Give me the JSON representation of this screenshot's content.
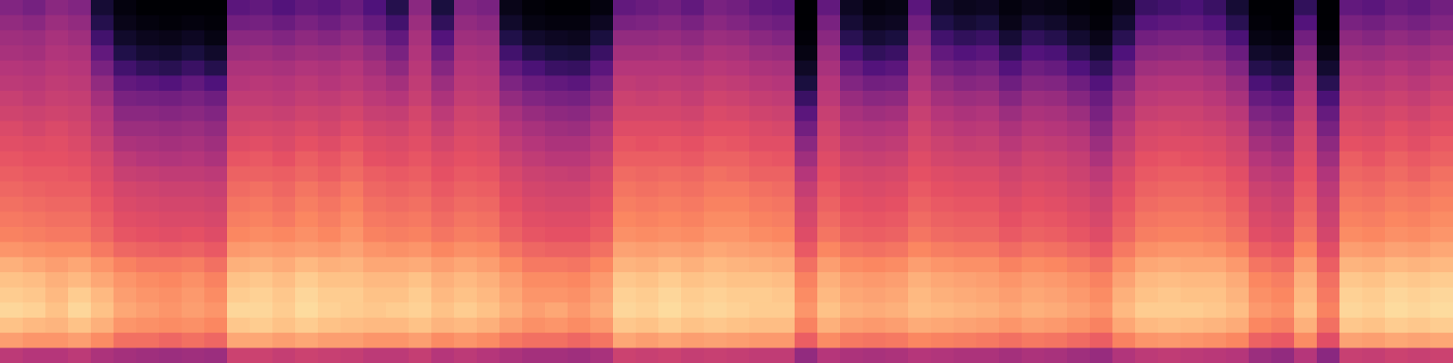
{
  "chart_data": {
    "type": "heatmap",
    "color": "magma",
    "tick_labels": false,
    "zlim": [
      0,
      100
    ],
    "cells": [
      [
        38,
        42,
        45,
        47,
        50,
        52,
        55,
        57,
        60,
        62,
        64,
        66,
        68,
        70,
        72,
        74,
        78,
        84,
        88,
        90,
        92,
        88,
        80,
        52
      ],
      [
        35,
        40,
        44,
        46,
        49,
        51,
        53,
        56,
        58,
        61,
        63,
        65,
        67,
        69,
        71,
        73,
        77,
        82,
        87,
        89,
        91,
        86,
        78,
        50
      ],
      [
        40,
        44,
        47,
        49,
        51,
        53,
        55,
        57,
        60,
        62,
        63,
        65,
        66,
        68,
        70,
        72,
        76,
        80,
        84,
        86,
        88,
        85,
        78,
        50
      ],
      [
        38,
        42,
        45,
        48,
        50,
        52,
        54,
        56,
        58,
        60,
        62,
        64,
        66,
        68,
        70,
        72,
        76,
        82,
        86,
        90,
        92,
        88,
        80,
        52
      ],
      [
        10,
        15,
        22,
        30,
        36,
        42,
        46,
        50,
        52,
        55,
        58,
        60,
        62,
        64,
        66,
        68,
        72,
        78,
        82,
        86,
        88,
        84,
        76,
        48
      ],
      [
        2,
        4,
        8,
        14,
        22,
        30,
        36,
        40,
        44,
        48,
        52,
        55,
        58,
        60,
        62,
        64,
        68,
        74,
        78,
        80,
        82,
        78,
        70,
        46
      ],
      [
        0,
        2,
        5,
        10,
        18,
        28,
        35,
        40,
        44,
        47,
        50,
        54,
        57,
        59,
        61,
        63,
        67,
        72,
        76,
        78,
        80,
        77,
        70,
        45
      ],
      [
        0,
        1,
        4,
        9,
        16,
        26,
        34,
        39,
        43,
        46,
        49,
        53,
        56,
        58,
        60,
        62,
        66,
        72,
        75,
        77,
        78,
        76,
        68,
        44
      ],
      [
        0,
        2,
        6,
        12,
        20,
        30,
        36,
        40,
        44,
        47,
        50,
        53,
        56,
        58,
        60,
        63,
        67,
        73,
        77,
        79,
        80,
        77,
        70,
        45
      ],
      [
        0,
        1,
        3,
        8,
        15,
        25,
        33,
        38,
        42,
        45,
        48,
        52,
        55,
        57,
        59,
        61,
        65,
        70,
        74,
        76,
        78,
        75,
        68,
        44
      ],
      [
        28,
        34,
        40,
        44,
        48,
        50,
        53,
        56,
        58,
        61,
        64,
        67,
        69,
        71,
        73,
        75,
        79,
        84,
        88,
        90,
        92,
        89,
        82,
        56
      ],
      [
        30,
        35,
        40,
        45,
        48,
        51,
        53,
        56,
        59,
        62,
        65,
        67,
        70,
        72,
        74,
        76,
        80,
        85,
        89,
        91,
        92,
        90,
        82,
        56
      ],
      [
        26,
        32,
        38,
        43,
        47,
        50,
        52,
        55,
        58,
        60,
        63,
        66,
        68,
        70,
        72,
        75,
        79,
        83,
        87,
        89,
        90,
        88,
        80,
        54
      ],
      [
        30,
        36,
        41,
        45,
        49,
        52,
        54,
        57,
        60,
        63,
        66,
        68,
        71,
        73,
        75,
        77,
        80,
        86,
        90,
        92,
        93,
        90,
        82,
        56
      ],
      [
        28,
        33,
        39,
        44,
        48,
        50,
        53,
        56,
        58,
        61,
        64,
        66,
        69,
        71,
        73,
        75,
        79,
        84,
        88,
        90,
        91,
        88,
        80,
        55
      ],
      [
        32,
        37,
        42,
        46,
        50,
        52,
        55,
        58,
        61,
        64,
        67,
        69,
        72,
        74,
        76,
        78,
        81,
        85,
        88,
        90,
        90,
        87,
        80,
        54
      ],
      [
        25,
        31,
        37,
        42,
        46,
        49,
        52,
        55,
        58,
        61,
        63,
        66,
        68,
        70,
        72,
        74,
        78,
        82,
        86,
        88,
        89,
        86,
        78,
        52
      ],
      [
        15,
        22,
        30,
        36,
        41,
        46,
        50,
        54,
        57,
        60,
        62,
        65,
        67,
        69,
        71,
        73,
        77,
        82,
        86,
        88,
        90,
        86,
        78,
        52
      ],
      [
        40,
        44,
        47,
        49,
        51,
        53,
        55,
        58,
        60,
        62,
        64,
        66,
        68,
        70,
        72,
        74,
        78,
        83,
        88,
        90,
        91,
        88,
        80,
        54
      ],
      [
        12,
        18,
        26,
        33,
        39,
        44,
        48,
        52,
        55,
        58,
        61,
        63,
        65,
        67,
        69,
        71,
        75,
        80,
        84,
        86,
        88,
        85,
        76,
        50
      ],
      [
        38,
        42,
        45,
        48,
        50,
        52,
        54,
        57,
        59,
        61,
        63,
        65,
        67,
        69,
        71,
        73,
        77,
        82,
        86,
        88,
        90,
        86,
        78,
        52
      ],
      [
        36,
        40,
        44,
        47,
        49,
        51,
        53,
        56,
        58,
        60,
        62,
        64,
        66,
        68,
        70,
        72,
        76,
        80,
        84,
        86,
        88,
        84,
        76,
        50
      ],
      [
        4,
        8,
        14,
        22,
        30,
        37,
        42,
        47,
        50,
        53,
        56,
        59,
        61,
        63,
        65,
        67,
        71,
        76,
        80,
        82,
        84,
        80,
        72,
        48
      ],
      [
        1,
        3,
        8,
        15,
        24,
        32,
        38,
        43,
        47,
        50,
        53,
        56,
        58,
        60,
        62,
        64,
        68,
        72,
        76,
        78,
        80,
        77,
        70,
        46
      ],
      [
        0,
        2,
        6,
        12,
        20,
        30,
        36,
        41,
        45,
        48,
        51,
        55,
        57,
        59,
        61,
        63,
        67,
        72,
        76,
        78,
        82,
        78,
        70,
        46
      ],
      [
        0,
        2,
        5,
        11,
        19,
        28,
        35,
        40,
        44,
        48,
        51,
        54,
        57,
        59,
        61,
        63,
        67,
        71,
        75,
        77,
        79,
        76,
        68,
        45
      ],
      [
        2,
        6,
        12,
        20,
        28,
        35,
        40,
        45,
        49,
        52,
        55,
        58,
        60,
        62,
        64,
        66,
        70,
        75,
        79,
        81,
        83,
        79,
        71,
        47
      ],
      [
        30,
        36,
        42,
        46,
        50,
        53,
        56,
        58,
        61,
        64,
        66,
        69,
        71,
        73,
        75,
        77,
        81,
        85,
        89,
        91,
        92,
        89,
        82,
        56
      ],
      [
        32,
        37,
        42,
        46,
        50,
        52,
        55,
        58,
        61,
        63,
        66,
        68,
        70,
        72,
        74,
        76,
        80,
        84,
        88,
        90,
        91,
        88,
        80,
        55
      ],
      [
        34,
        39,
        43,
        47,
        50,
        53,
        56,
        58,
        61,
        64,
        66,
        69,
        71,
        73,
        75,
        77,
        81,
        86,
        90,
        92,
        93,
        90,
        82,
        56
      ],
      [
        30,
        36,
        41,
        45,
        49,
        52,
        54,
        57,
        60,
        63,
        65,
        68,
        70,
        72,
        74,
        76,
        80,
        84,
        88,
        90,
        91,
        88,
        80,
        54
      ],
      [
        36,
        40,
        44,
        48,
        51,
        54,
        57,
        60,
        62,
        65,
        67,
        70,
        72,
        74,
        76,
        78,
        82,
        86,
        89,
        91,
        92,
        89,
        81,
        55
      ],
      [
        34,
        38,
        43,
        47,
        50,
        53,
        56,
        59,
        62,
        64,
        67,
        69,
        72,
        74,
        76,
        78,
        81,
        85,
        88,
        90,
        91,
        88,
        80,
        54
      ],
      [
        30,
        35,
        40,
        44,
        48,
        51,
        54,
        57,
        60,
        62,
        65,
        67,
        70,
        72,
        74,
        76,
        80,
        84,
        88,
        90,
        90,
        87,
        79,
        53
      ],
      [
        28,
        33,
        38,
        43,
        47,
        50,
        53,
        56,
        59,
        62,
        64,
        67,
        69,
        71,
        73,
        75,
        79,
        83,
        87,
        89,
        90,
        87,
        79,
        53
      ],
      [
        0,
        0,
        1,
        3,
        7,
        12,
        20,
        28,
        34,
        40,
        45,
        50,
        54,
        57,
        59,
        61,
        65,
        70,
        74,
        76,
        78,
        74,
        66,
        42
      ],
      [
        30,
        36,
        40,
        44,
        47,
        50,
        52,
        55,
        57,
        59,
        61,
        63,
        65,
        67,
        69,
        71,
        75,
        80,
        84,
        86,
        88,
        84,
        76,
        50
      ],
      [
        6,
        10,
        16,
        24,
        32,
        38,
        43,
        47,
        50,
        53,
        56,
        59,
        61,
        63,
        65,
        67,
        71,
        76,
        80,
        82,
        84,
        80,
        72,
        48
      ],
      [
        2,
        5,
        10,
        18,
        26,
        34,
        40,
        45,
        49,
        52,
        55,
        58,
        60,
        62,
        64,
        66,
        70,
        75,
        79,
        81,
        83,
        79,
        71,
        47
      ],
      [
        3,
        6,
        12,
        20,
        28,
        35,
        41,
        46,
        50,
        53,
        56,
        59,
        61,
        63,
        65,
        67,
        71,
        76,
        80,
        82,
        84,
        80,
        72,
        48
      ],
      [
        28,
        34,
        39,
        43,
        46,
        49,
        52,
        55,
        57,
        59,
        61,
        63,
        65,
        67,
        69,
        71,
        75,
        80,
        84,
        86,
        87,
        83,
        75,
        50
      ],
      [
        8,
        14,
        22,
        30,
        36,
        42,
        46,
        50,
        53,
        56,
        58,
        61,
        63,
        65,
        67,
        69,
        73,
        78,
        82,
        84,
        86,
        82,
        74,
        49
      ],
      [
        5,
        10,
        18,
        26,
        33,
        39,
        44,
        48,
        51,
        54,
        57,
        60,
        62,
        64,
        66,
        68,
        72,
        77,
        81,
        83,
        85,
        81,
        73,
        48
      ],
      [
        6,
        12,
        20,
        28,
        35,
        40,
        45,
        49,
        52,
        55,
        57,
        60,
        62,
        64,
        66,
        68,
        72,
        77,
        80,
        82,
        84,
        80,
        72,
        48
      ],
      [
        2,
        4,
        10,
        18,
        26,
        33,
        39,
        44,
        48,
        51,
        54,
        57,
        59,
        61,
        63,
        65,
        69,
        74,
        78,
        80,
        82,
        78,
        70,
        46
      ],
      [
        4,
        10,
        18,
        26,
        33,
        39,
        44,
        48,
        51,
        54,
        57,
        59,
        61,
        63,
        65,
        67,
        71,
        76,
        80,
        82,
        84,
        80,
        72,
        48
      ],
      [
        3,
        8,
        15,
        24,
        31,
        38,
        43,
        47,
        50,
        53,
        56,
        58,
        60,
        62,
        64,
        66,
        70,
        75,
        79,
        81,
        83,
        79,
        71,
        47
      ],
      [
        1,
        4,
        9,
        17,
        25,
        33,
        39,
        44,
        48,
        51,
        54,
        56,
        58,
        60,
        62,
        64,
        68,
        73,
        77,
        79,
        81,
        77,
        69,
        45
      ],
      [
        0,
        1,
        4,
        10,
        18,
        26,
        32,
        36,
        40,
        44,
        48,
        52,
        55,
        57,
        59,
        61,
        65,
        70,
        74,
        76,
        78,
        74,
        66,
        43
      ],
      [
        4,
        9,
        16,
        25,
        32,
        39,
        44,
        48,
        51,
        54,
        57,
        60,
        62,
        64,
        66,
        68,
        72,
        77,
        81,
        84,
        86,
        82,
        74,
        49
      ],
      [
        20,
        27,
        34,
        40,
        45,
        49,
        52,
        55,
        58,
        60,
        63,
        65,
        67,
        69,
        71,
        73,
        77,
        82,
        86,
        88,
        90,
        86,
        78,
        52
      ],
      [
        22,
        29,
        36,
        41,
        46,
        50,
        53,
        56,
        59,
        61,
        64,
        66,
        68,
        70,
        72,
        74,
        78,
        83,
        87,
        89,
        90,
        87,
        79,
        53
      ],
      [
        24,
        30,
        36,
        42,
        46,
        50,
        53,
        56,
        58,
        61,
        63,
        66,
        68,
        70,
        72,
        74,
        78,
        82,
        86,
        88,
        90,
        86,
        78,
        52
      ],
      [
        20,
        26,
        33,
        39,
        44,
        48,
        51,
        54,
        57,
        60,
        62,
        65,
        67,
        69,
        71,
        73,
        77,
        82,
        86,
        88,
        89,
        85,
        77,
        51
      ],
      [
        10,
        16,
        24,
        32,
        38,
        43,
        47,
        51,
        54,
        57,
        59,
        62,
        64,
        66,
        68,
        70,
        74,
        79,
        83,
        85,
        87,
        83,
        75,
        50
      ],
      [
        0,
        1,
        3,
        8,
        15,
        24,
        31,
        37,
        42,
        46,
        50,
        53,
        56,
        58,
        60,
        62,
        66,
        71,
        75,
        77,
        79,
        75,
        67,
        44
      ],
      [
        0,
        0,
        2,
        6,
        12,
        20,
        28,
        34,
        39,
        43,
        47,
        51,
        54,
        56,
        58,
        60,
        64,
        69,
        73,
        75,
        77,
        73,
        65,
        42
      ],
      [
        18,
        26,
        34,
        40,
        45,
        48,
        51,
        54,
        57,
        59,
        61,
        63,
        65,
        67,
        69,
        71,
        75,
        80,
        84,
        86,
        88,
        84,
        76,
        50
      ],
      [
        0,
        0,
        1,
        4,
        9,
        16,
        24,
        31,
        36,
        41,
        45,
        49,
        52,
        54,
        56,
        58,
        62,
        66,
        70,
        72,
        74,
        70,
        62,
        40
      ],
      [
        30,
        36,
        41,
        45,
        49,
        52,
        55,
        58,
        60,
        63,
        66,
        68,
        70,
        72,
        74,
        76,
        80,
        85,
        89,
        91,
        92,
        89,
        81,
        55
      ],
      [
        28,
        34,
        39,
        44,
        48,
        51,
        54,
        57,
        59,
        62,
        64,
        67,
        69,
        71,
        73,
        75,
        79,
        84,
        88,
        90,
        91,
        88,
        80,
        54
      ],
      [
        32,
        37,
        42,
        46,
        50,
        53,
        56,
        59,
        62,
        64,
        67,
        69,
        71,
        73,
        75,
        77,
        81,
        86,
        90,
        92,
        93,
        90,
        82,
        56
      ],
      [
        30,
        35,
        40,
        45,
        48,
        51,
        54,
        57,
        60,
        62,
        65,
        67,
        70,
        72,
        74,
        76,
        80,
        85,
        89,
        91,
        92,
        89,
        81,
        55
      ],
      [
        34,
        38,
        43,
        47,
        51,
        54,
        57,
        60,
        62,
        65,
        67,
        70,
        72,
        74,
        76,
        78,
        82,
        86,
        90,
        92,
        93,
        90,
        82,
        56
      ]
    ]
  }
}
